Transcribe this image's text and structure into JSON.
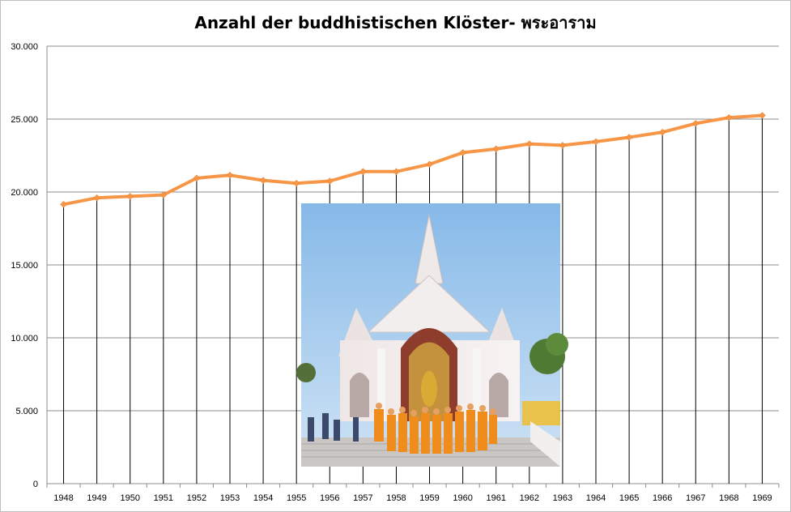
{
  "chart_data": {
    "type": "line",
    "title": "Anzahl der buddhistischen Klöster- พระอาราม",
    "xlabel": "",
    "ylabel": "",
    "ylim": [
      0,
      30000
    ],
    "ytick_labels": [
      "0",
      "5.000",
      "10.000",
      "15.000",
      "20.000",
      "25.000",
      "30.000"
    ],
    "ytick_values": [
      0,
      5000,
      10000,
      15000,
      20000,
      25000,
      30000
    ],
    "grid": "horizontal gridlines and vertical drop lines",
    "legend": "none",
    "categories": [
      "1948",
      "1949",
      "1950",
      "1951",
      "1952",
      "1953",
      "1954",
      "1955",
      "1956",
      "1957",
      "1958",
      "1959",
      "1960",
      "1961",
      "1962",
      "1963",
      "1964",
      "1965",
      "1966",
      "1967",
      "1968",
      "1969"
    ],
    "series": [
      {
        "color": "#f79646",
        "values": [
          19150,
          19600,
          19700,
          19800,
          20950,
          21150,
          20800,
          20600,
          20750,
          21400,
          21400,
          21900,
          22700,
          22950,
          23300,
          23200,
          23450,
          23750,
          24100,
          24700,
          25100,
          25250
        ]
      }
    ],
    "inset_photo": "temple-with-monks-photo"
  }
}
